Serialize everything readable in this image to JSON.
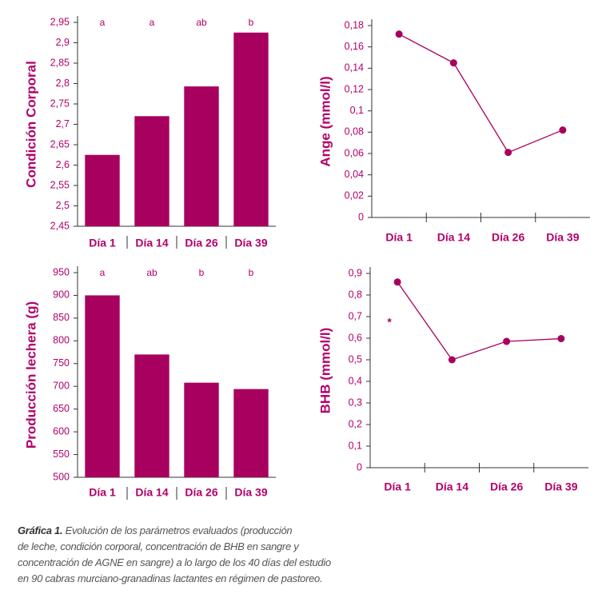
{
  "chart_data": [
    {
      "type": "bar",
      "y_label": "Condición Corporal",
      "categories": [
        "Día 1",
        "Día 14",
        "Día 26",
        "Día 39"
      ],
      "values": [
        2.625,
        2.72,
        2.793,
        2.925
      ],
      "annotations": [
        "a",
        "a",
        "ab",
        "b"
      ],
      "color": "#a8005f",
      "ylim": [
        2.45,
        2.95
      ],
      "yticks": [
        {
          "value": 2.45,
          "label": "2,45"
        },
        {
          "value": 2.5,
          "label": "2,5"
        },
        {
          "value": 2.55,
          "label": "2,55"
        },
        {
          "value": 2.6,
          "label": "2,6"
        },
        {
          "value": 2.65,
          "label": "2,65"
        },
        {
          "value": 2.7,
          "label": "2,7"
        },
        {
          "value": 2.75,
          "label": "2,75"
        },
        {
          "value": 2.8,
          "label": "2,8"
        },
        {
          "value": 2.85,
          "label": "2,85"
        },
        {
          "value": 2.9,
          "label": "2,9"
        },
        {
          "value": 2.95,
          "label": "2,95"
        }
      ]
    },
    {
      "type": "line",
      "y_label": "Ange (mmol/l)",
      "categories": [
        "Día 1",
        "Día 14",
        "Día 26",
        "Día 39"
      ],
      "values": [
        0.172,
        0.145,
        0.061,
        0.082
      ],
      "color": "#a8005f",
      "ylim": [
        0,
        0.18
      ],
      "yticks": [
        0,
        {
          "value": 0.02,
          "label": "0,02"
        },
        {
          "value": 0.04,
          "label": "0,04"
        },
        {
          "value": 0.06,
          "label": "0,06"
        },
        {
          "value": 0.08,
          "label": "0,08"
        },
        {
          "value": 0.1,
          "label": "0,1"
        },
        {
          "value": 0.12,
          "label": "0,12"
        },
        {
          "value": 0.14,
          "label": "0,14"
        },
        {
          "value": 0.16,
          "label": "0,16"
        },
        {
          "value": 0.18,
          "label": "0,18"
        }
      ]
    },
    {
      "type": "bar",
      "y_label": "Producción lechera (g)",
      "categories": [
        "Día 1",
        "Día 14",
        "Día 26",
        "Día 39"
      ],
      "values": [
        900,
        770,
        708,
        694
      ],
      "annotations": [
        "a",
        "ab",
        "b",
        "b"
      ],
      "color": "#a8005f",
      "ylim": [
        500,
        950
      ],
      "yticks": [
        500,
        550,
        600,
        650,
        700,
        750,
        800,
        850,
        900,
        950
      ]
    },
    {
      "type": "line",
      "y_label": "BHB (mmol/l)",
      "categories": [
        "Día 1",
        "Día 14",
        "Día 26",
        "Día 39"
      ],
      "values": [
        0.86,
        0.5,
        0.585,
        0.598
      ],
      "annotation": "*",
      "color": "#a8005f",
      "ylim": [
        0,
        0.9
      ],
      "yticks": [
        0,
        {
          "value": 0.1,
          "label": "0,1"
        },
        {
          "value": 0.2,
          "label": "0,2"
        },
        {
          "value": 0.3,
          "label": "0,3"
        },
        {
          "value": 0.4,
          "label": "0,4"
        },
        {
          "value": 0.5,
          "label": "0,5"
        },
        {
          "value": 0.6,
          "label": "0,6"
        },
        {
          "value": 0.7,
          "label": "0,7"
        },
        {
          "value": 0.8,
          "label": "0,8"
        },
        {
          "value": 0.9,
          "label": "0,9"
        }
      ]
    }
  ],
  "caption": {
    "label": "Gráfica 1.",
    "lines": [
      "Evolución de los parámetros evaluados (producción",
      "de leche, condición corporal, concentración de BHB en sangre y",
      "concentración de AGNE en sangre) a lo largo de los 40 días del estudio",
      "en 90 cabras murciano-granadinas lactantes en régimen de pastoreo."
    ]
  }
}
